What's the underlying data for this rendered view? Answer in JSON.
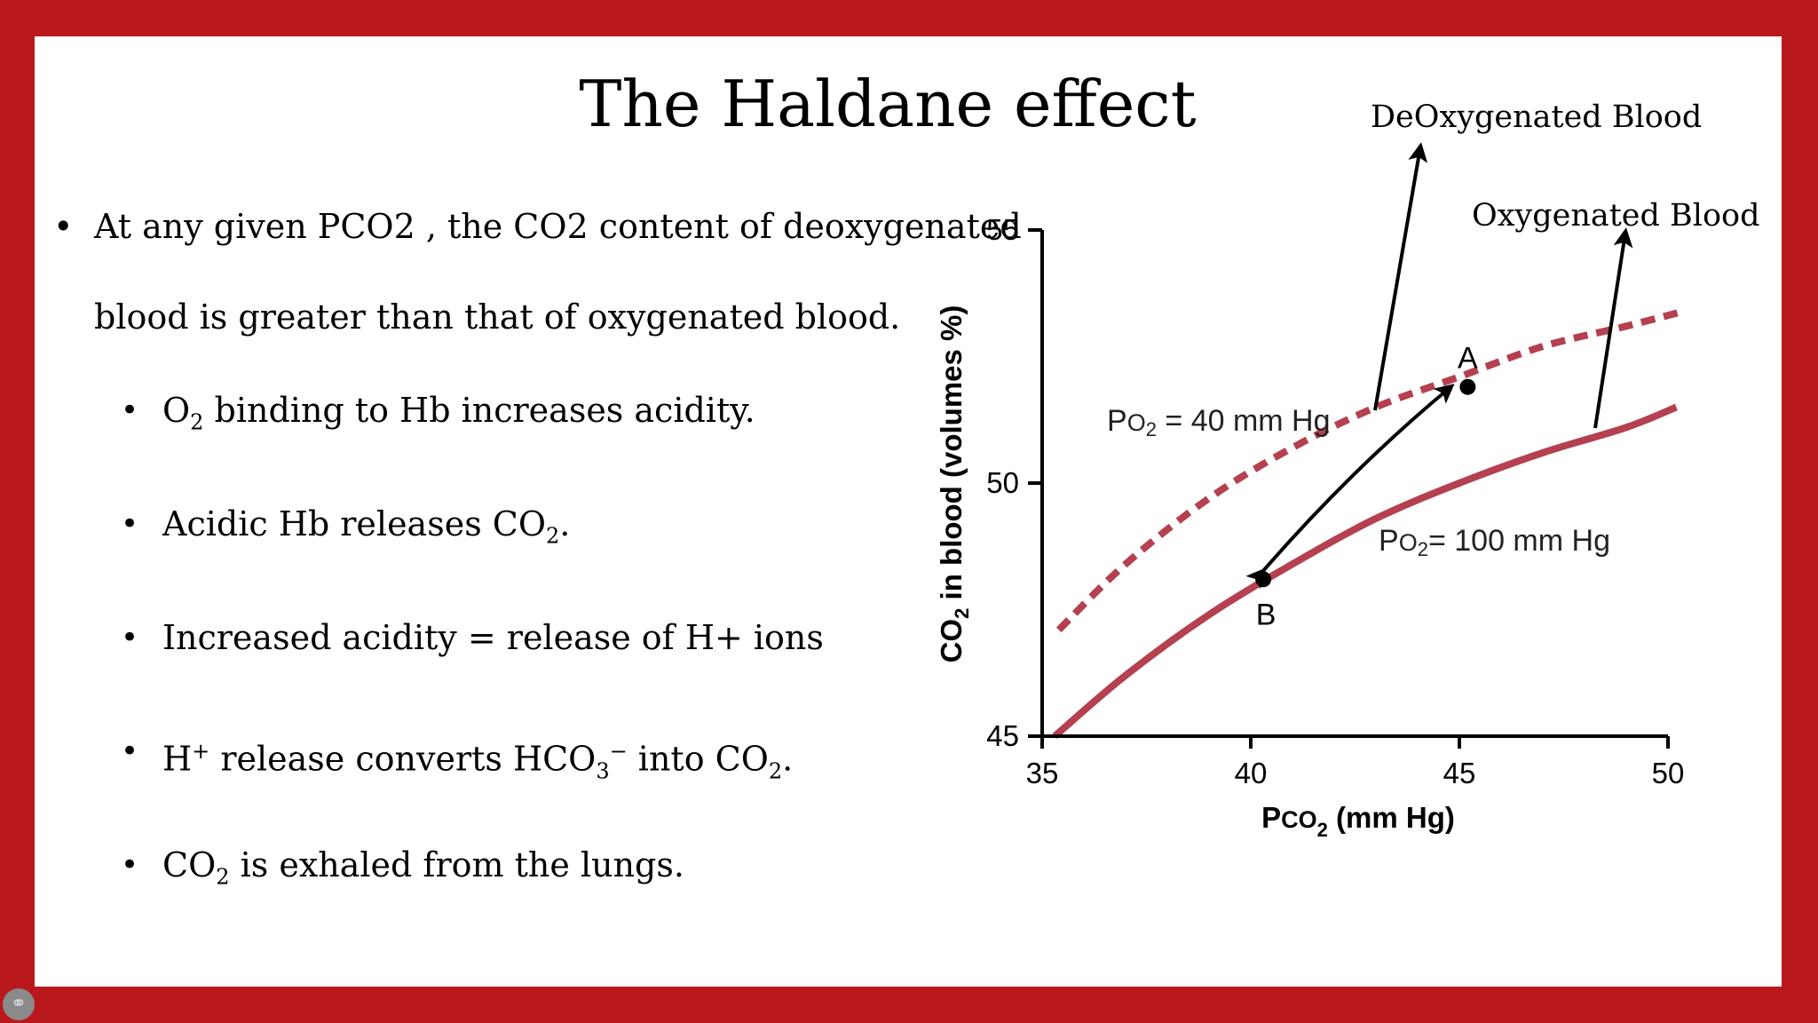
{
  "slide": {
    "title": "The Haldane effect",
    "bullet_main": {
      "line1": "At any given PCO2 , the CO2 content of deoxygenated",
      "line2": "blood is greater than that of oxygenated blood."
    },
    "sub_bullets": [
      {
        "pre": "O",
        "sub": "2",
        "post": " binding to Hb increases acidity."
      },
      {
        "pre": "Acidic Hb releases CO",
        "sub": "2",
        "post": "."
      },
      {
        "pre": "Increased acidity = release of H+ ions",
        "sub": "",
        "post": ""
      },
      {
        "pre": "H",
        "sup1": "+",
        "mid": " release converts HCO",
        "sub": "3",
        "sup2": "−",
        "post2": " into CO",
        "sub2": "2",
        "end": "."
      },
      {
        "pre": "CO",
        "sub": "2",
        "post": " is exhaled from the lungs."
      }
    ],
    "bullet_symbol": "•"
  },
  "chart_data": {
    "type": "line",
    "xlabel": "Pco2 (mm Hg)",
    "ylabel": "CO2 in blood (volumes %)",
    "xlim": [
      35,
      50
    ],
    "ylim": [
      45,
      55
    ],
    "x_ticks": [
      "35",
      "40",
      "45",
      "50"
    ],
    "y_ticks": [
      "45",
      "50",
      "55"
    ],
    "series": [
      {
        "name": "PO2 = 40 mm Hg",
        "style": "dashed",
        "color": "#b5404f",
        "x": [
          35.4,
          37,
          39,
          41,
          43,
          45,
          47,
          49,
          50.4
        ],
        "y": [
          47.1,
          48.4,
          49.7,
          50.7,
          51.5,
          52.1,
          52.7,
          53.1,
          53.4
        ]
      },
      {
        "name": "PO2 = 100 mm Hg",
        "style": "solid",
        "color": "#b5404f",
        "x": [
          35.3,
          37,
          39,
          41,
          43,
          45,
          47,
          49,
          50.2
        ],
        "y": [
          45,
          46.2,
          47.4,
          48.4,
          49.3,
          50.0,
          50.6,
          51.1,
          51.5
        ]
      }
    ],
    "points": [
      {
        "label": "A",
        "x": 45.2,
        "y": 51.9
      },
      {
        "label": "B",
        "x": 40.3,
        "y": 48.1
      }
    ],
    "series_labels": {
      "s1_pre": "P",
      "s1_small": "O",
      "s1_sub": "2",
      "s1_post": " = 40 mm Hg",
      "s2_pre": "P",
      "s2_small": "O",
      "s2_sub": "2",
      "s2_post": "= 100 mm Hg"
    },
    "axis_label_parts": {
      "y_pre": "CO",
      "y_sub": "2",
      "y_post": " in blood (volumes %)",
      "x_pre": "P",
      "x_small": "CO",
      "x_sub": "2",
      "x_post": " (mm Hg)"
    },
    "annotations": [
      {
        "text": "DeOxygenated Blood"
      },
      {
        "text": "Oxygenated Blood"
      }
    ]
  }
}
